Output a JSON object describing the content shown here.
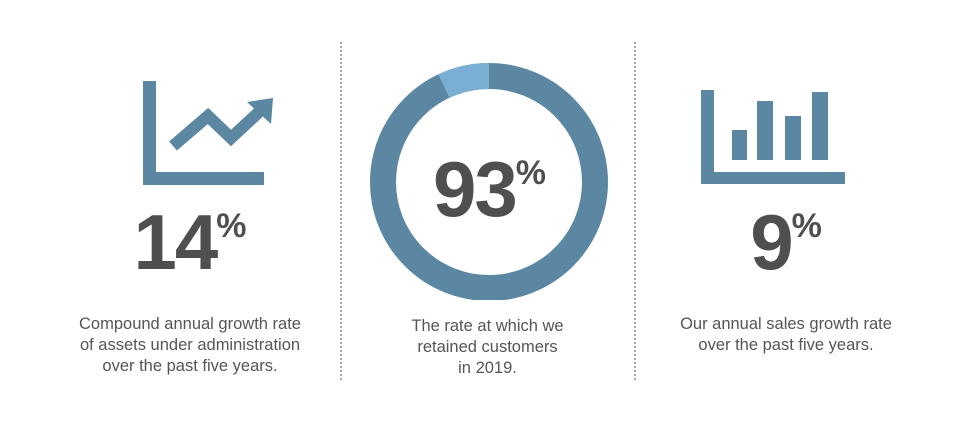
{
  "colors": {
    "accent": "#5b87a2",
    "accent_light": "#7aafd3",
    "stat_text": "#4f4f4f",
    "caption_text": "#555555",
    "divider": "#a9a9a9"
  },
  "stats": [
    {
      "icon": "line-chart-trend-up-icon",
      "value": "14",
      "unit": "%",
      "caption_lines": [
        "Compound annual growth rate",
        "of assets under administration",
        "over the past five years."
      ]
    },
    {
      "icon": "donut-chart-icon",
      "value": "93",
      "unit": "%",
      "fill_fraction": 0.93,
      "caption_lines": [
        "The rate at which we",
        "retained customers",
        "in 2019."
      ]
    },
    {
      "icon": "bar-chart-icon",
      "value": "9",
      "unit": "%",
      "caption_lines": [
        "Our annual sales growth rate",
        "over the past five years."
      ]
    }
  ]
}
